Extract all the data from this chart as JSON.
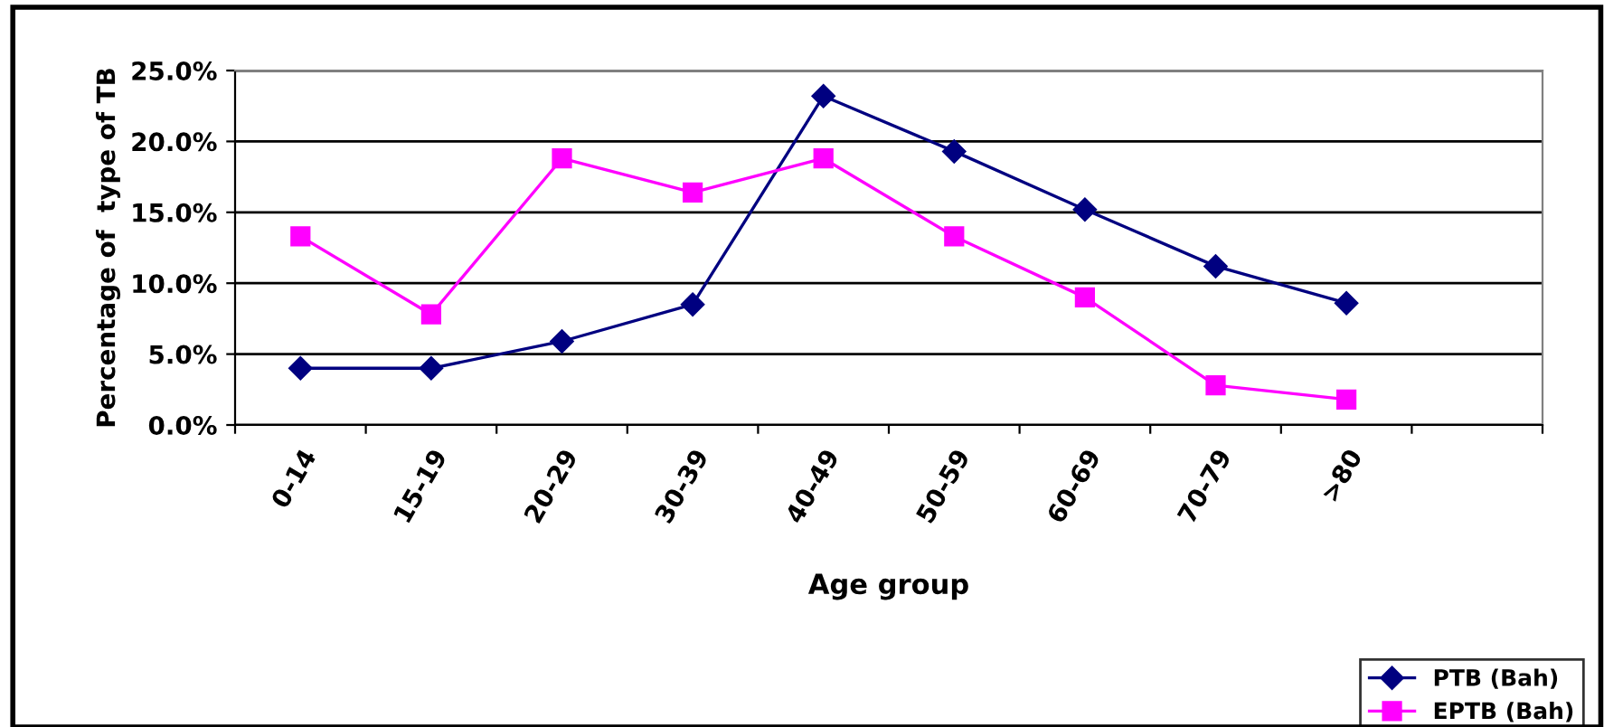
{
  "chart_data": {
    "type": "line",
    "xlabel": "Age group",
    "ylabel": "Percentage of  type of TB",
    "categories": [
      "0-14",
      "15-19",
      "20-29",
      "30-39",
      "40-49",
      "50-59",
      "60-69",
      "70-79",
      ">80",
      null
    ],
    "series": [
      {
        "name": "PTB (Bah)",
        "color": "#000080",
        "marker": "diamond",
        "values": [
          4.0,
          4.0,
          5.9,
          8.5,
          23.2,
          19.3,
          15.2,
          11.2,
          8.6,
          null
        ]
      },
      {
        "name": "EPTB (Bah)",
        "color": "#ff00ff",
        "marker": "square",
        "values": [
          13.3,
          7.8,
          18.8,
          16.4,
          18.8,
          13.3,
          9.0,
          2.8,
          1.8,
          null
        ]
      }
    ],
    "ylim": [
      0,
      25
    ],
    "yticks": [
      {
        "value": 0,
        "label": "0.0%"
      },
      {
        "value": 5,
        "label": "5.0%"
      },
      {
        "value": 10,
        "label": "10.0%"
      },
      {
        "value": 15,
        "label": "15.0%"
      },
      {
        "value": 20,
        "label": "20.0%"
      },
      {
        "value": 25,
        "label": "25.0%"
      }
    ],
    "grid": "y",
    "legend": "bottom right",
    "line_style": "solid"
  }
}
